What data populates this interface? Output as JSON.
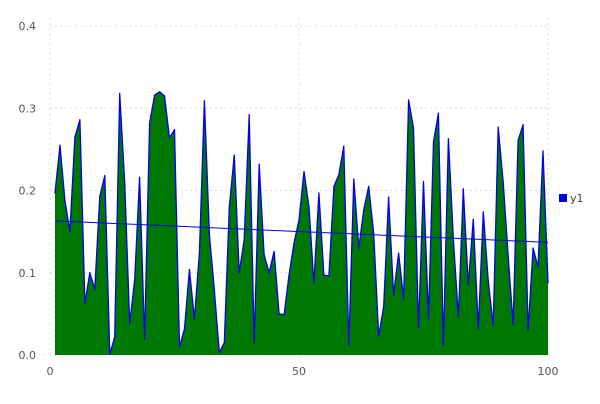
{
  "chart_data": {
    "type": "area",
    "title": "",
    "xlabel": "",
    "ylabel": "",
    "xlim": [
      0,
      100
    ],
    "ylim": [
      0,
      0.4
    ],
    "x_ticks": [
      "0",
      "50",
      "100"
    ],
    "x_tick_values": [
      0,
      50,
      100
    ],
    "y_ticks": [
      "0.0",
      "0.1",
      "0.2",
      "0.3",
      "0.4"
    ],
    "y_tick_values": [
      0,
      0.1,
      0.2,
      0.3,
      0.4
    ],
    "grid": true,
    "legend_position": "right",
    "colors": {
      "line": "#0000ee",
      "fill": "#007700",
      "trend": "#0000ee",
      "grid": "#dddddd"
    },
    "series": [
      {
        "name": "y1",
        "x_start": 1,
        "values": [
          0.197,
          0.255,
          0.188,
          0.15,
          0.265,
          0.286,
          0.063,
          0.1,
          0.08,
          0.193,
          0.218,
          0.001,
          0.022,
          0.318,
          0.21,
          0.038,
          0.092,
          0.216,
          0.019,
          0.282,
          0.316,
          0.32,
          0.315,
          0.264,
          0.274,
          0.01,
          0.032,
          0.104,
          0.044,
          0.124,
          0.309,
          0.146,
          0.08,
          0.003,
          0.015,
          0.18,
          0.243,
          0.1,
          0.14,
          0.292,
          0.015,
          0.232,
          0.122,
          0.1,
          0.126,
          0.05,
          0.049,
          0.097,
          0.136,
          0.164,
          0.223,
          0.18,
          0.087,
          0.197,
          0.097,
          0.096,
          0.205,
          0.219,
          0.254,
          0.012,
          0.214,
          0.13,
          0.176,
          0.205,
          0.148,
          0.023,
          0.059,
          0.192,
          0.073,
          0.124,
          0.068,
          0.31,
          0.276,
          0.033,
          0.211,
          0.044,
          0.259,
          0.294,
          0.012,
          0.263,
          0.14,
          0.046,
          0.202,
          0.085,
          0.165,
          0.032,
          0.174,
          0.091,
          0.036,
          0.277,
          0.21,
          0.12,
          0.037,
          0.261,
          0.28,
          0.03,
          0.13,
          0.107,
          0.248,
          0.088
        ]
      }
    ],
    "trendline": {
      "x": [
        1,
        100
      ],
      "y": [
        0.163,
        0.137
      ]
    }
  }
}
